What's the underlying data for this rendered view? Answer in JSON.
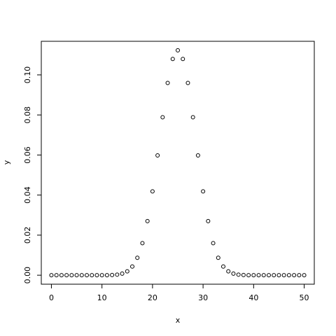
{
  "chart_data": {
    "type": "scatter",
    "x": [
      0,
      1,
      2,
      3,
      4,
      5,
      6,
      7,
      8,
      9,
      10,
      11,
      12,
      13,
      14,
      15,
      16,
      17,
      18,
      19,
      20,
      21,
      22,
      23,
      24,
      25,
      26,
      27,
      28,
      29,
      30,
      31,
      32,
      33,
      34,
      35,
      36,
      37,
      38,
      39,
      40,
      41,
      42,
      43,
      44,
      45,
      46,
      47,
      48,
      49,
      50
    ],
    "values": [
      0,
      0,
      0,
      0,
      0,
      0,
      0,
      0,
      0,
      1.6e-06,
      7.4e-06,
      2.84e-05,
      9.66e-05,
      0.0002927,
      0.0007954,
      0.001948,
      0.0043184,
      0.0087011,
      0.016012,
      0.0270202,
      0.0418631,
      0.0598044,
      0.0788614,
      0.0959617,
      0.1079569,
      0.1122752,
      0.1079569,
      0.0959617,
      0.0788614,
      0.0598044,
      0.0418631,
      0.0270202,
      0.016012,
      0.0087011,
      0.0043184,
      0.001948,
      0.0007954,
      0.0002927,
      9.66e-05,
      2.84e-05,
      7.4e-06,
      1.6e-06,
      0,
      0,
      0,
      0,
      0,
      0,
      0,
      0,
      0
    ],
    "color": "#000000",
    "xlabel": "x",
    "ylabel": "y",
    "xlim": [
      -2,
      52
    ],
    "xticks": [
      0,
      10,
      20,
      30,
      40,
      50
    ],
    "ylim": [
      -0.00449,
      0.11676
    ],
    "yticks": [
      {
        "value": 0,
        "label": "0.00"
      },
      {
        "value": 0.02,
        "label": "0.02"
      },
      {
        "value": 0.04,
        "label": "0.04"
      },
      {
        "value": 0.06,
        "label": "0.06"
      },
      {
        "value": 0.08,
        "label": "0.08"
      },
      {
        "value": 0.1,
        "label": "0.10"
      }
    ]
  }
}
